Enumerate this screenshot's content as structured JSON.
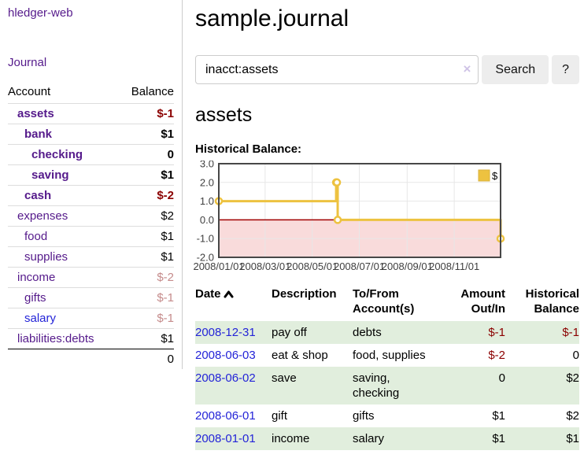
{
  "app": {
    "title": "hledger-web",
    "nav_journal": "Journal"
  },
  "sidebar": {
    "accounts_header": {
      "account": "Account",
      "balance": "Balance"
    },
    "accounts": [
      {
        "name": "assets",
        "level": 1,
        "bold": true,
        "name_color": "purple",
        "balance": "$-1",
        "balance_color": "neg"
      },
      {
        "name": "bank",
        "level": 2,
        "bold": true,
        "name_color": "purple",
        "balance": "$1",
        "balance_color": "black"
      },
      {
        "name": "checking",
        "level": 3,
        "bold": true,
        "name_color": "purple",
        "balance": "0",
        "balance_color": "black"
      },
      {
        "name": "saving",
        "level": 3,
        "bold": true,
        "name_color": "purple",
        "balance": "$1",
        "balance_color": "black"
      },
      {
        "name": "cash",
        "level": 2,
        "bold": true,
        "name_color": "purple",
        "balance": "$-2",
        "balance_color": "neg"
      },
      {
        "name": "expenses",
        "level": 1,
        "bold": false,
        "name_color": "purple",
        "balance": "$2",
        "balance_color": "black"
      },
      {
        "name": "food",
        "level": 2,
        "bold": false,
        "name_color": "purple",
        "balance": "$1",
        "balance_color": "black"
      },
      {
        "name": "supplies",
        "level": 2,
        "bold": false,
        "name_color": "purple",
        "balance": "$1",
        "balance_color": "black"
      },
      {
        "name": "income",
        "level": 1,
        "bold": false,
        "name_color": "purple",
        "balance": "$-2",
        "balance_color": "soft"
      },
      {
        "name": "gifts",
        "level": 2,
        "bold": false,
        "name_color": "purple",
        "balance": "$-1",
        "balance_color": "soft"
      },
      {
        "name": "salary",
        "level": 2,
        "bold": false,
        "name_color": "blue",
        "balance": "$-1",
        "balance_color": "soft"
      },
      {
        "name": "liabilities:debts",
        "level": 1,
        "bold": false,
        "name_color": "purple",
        "balance": "$1",
        "balance_color": "black"
      }
    ],
    "total": "0"
  },
  "main": {
    "title": "sample.journal",
    "search": {
      "value": "inacct:assets",
      "clear_icon": "×",
      "search_label": "Search",
      "help_label": "?"
    },
    "section_title": "assets"
  },
  "chart_data": {
    "type": "line",
    "title": "Historical Balance:",
    "step": true,
    "series": [
      {
        "name": "$",
        "color": "#edc240",
        "points": [
          [
            "2008-01-01",
            1
          ],
          [
            "2008-06-01",
            2
          ],
          [
            "2008-06-02",
            2
          ],
          [
            "2008-06-03",
            0
          ],
          [
            "2008-12-31",
            -1
          ]
        ]
      }
    ],
    "ylim": [
      -2,
      3
    ],
    "yticks": [
      3.0,
      2.0,
      1.0,
      0.0,
      -1.0,
      -2.0
    ],
    "ytick_labels": [
      "3.0",
      "2.0",
      "1.0",
      "0.0",
      "-1.0",
      "-2.0"
    ],
    "xticks": [
      "2008/01/01",
      "2008/03/01",
      "2008/05/01",
      "2008/07/01",
      "2008/09/01",
      "2008/11/01"
    ],
    "grid": true,
    "legend_label": "$",
    "legend_position": "top-right",
    "colors": {
      "line": "#edc240",
      "marker_fill": "#ffffff",
      "negative_region": "#f9dbdb",
      "zero_line": "#a00000",
      "plot_border": "#474747",
      "gridline": "#e7e7e7",
      "tick_text": "#3f3f3f"
    }
  },
  "table": {
    "headers": [
      {
        "lines": [
          "Date"
        ],
        "align": "left",
        "sorted": "asc"
      },
      {
        "lines": [
          "Description"
        ],
        "align": "left"
      },
      {
        "lines": [
          "To/From",
          "Account(s)"
        ],
        "align": "left"
      },
      {
        "lines": [
          "Amount",
          "Out/In"
        ],
        "align": "right"
      },
      {
        "lines": [
          "Historical",
          "Balance"
        ],
        "align": "right"
      }
    ],
    "rows": [
      {
        "date": "2008-12-31",
        "description": "pay off",
        "accounts": "debts",
        "amount": "$-1",
        "amount_negative": true,
        "balance": "$-1",
        "balance_negative": true
      },
      {
        "date": "2008-06-03",
        "description": "eat & shop",
        "accounts": "food, supplies",
        "amount": "$-2",
        "amount_negative": true,
        "balance": "0",
        "balance_negative": false
      },
      {
        "date": "2008-06-02",
        "description": "save",
        "accounts": "saving, checking",
        "amount": "0",
        "amount_negative": false,
        "balance": "$2",
        "balance_negative": false
      },
      {
        "date": "2008-06-01",
        "description": "gift",
        "accounts": "gifts",
        "amount": "$1",
        "amount_negative": false,
        "balance": "$2",
        "balance_negative": false
      },
      {
        "date": "2008-01-01",
        "description": "income",
        "accounts": "salary",
        "amount": "$1",
        "amount_negative": false,
        "balance": "$1",
        "balance_negative": false
      }
    ]
  }
}
